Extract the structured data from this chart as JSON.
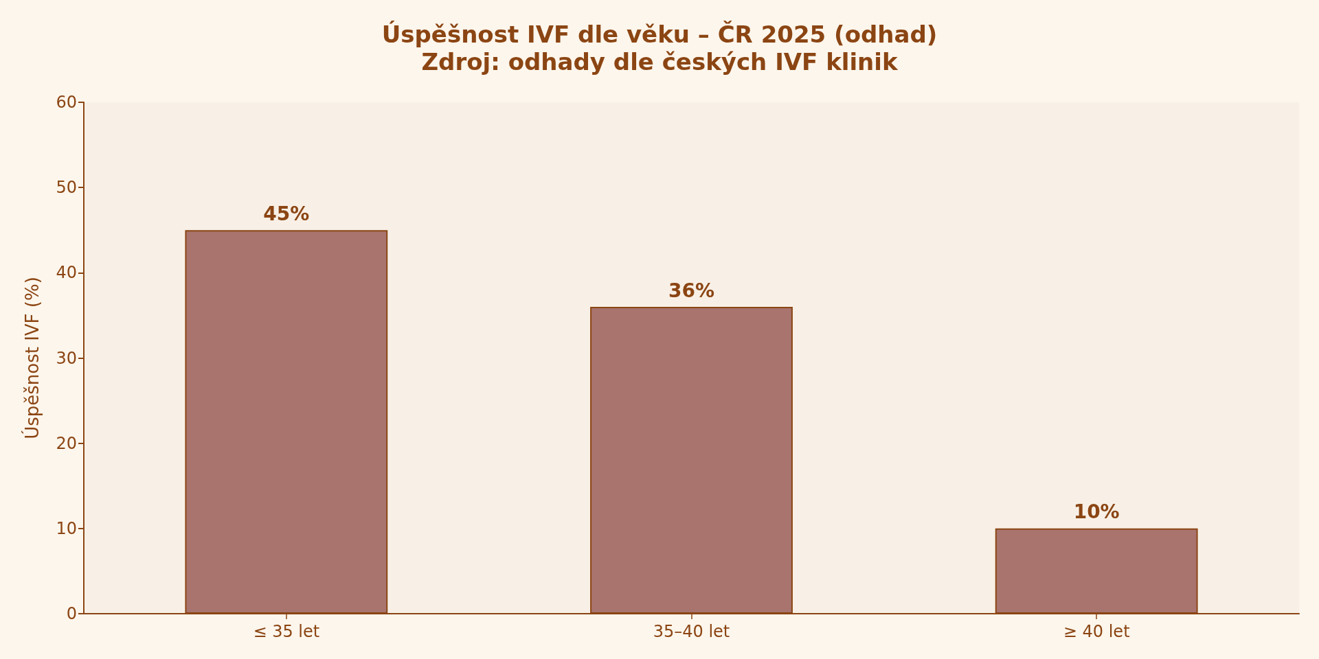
{
  "chart_data": {
    "type": "bar",
    "title": "Úspěšnost IVF dle věku – ČR 2025 (odhad)",
    "subtitle": "Zdroj: odhady dle českých IVF klinik",
    "ylabel": "Úspěšnost IVF (%)",
    "categories": [
      "≤ 35 let",
      "35–40 let",
      "≥ 40 let"
    ],
    "values": [
      45,
      36,
      10
    ],
    "value_labels": [
      "45%",
      "36%",
      "10%"
    ],
    "color": "#a9746e",
    "ylim": [
      0,
      60
    ],
    "yticks": [
      0,
      10,
      20,
      30,
      40,
      50,
      60
    ],
    "grid": false
  }
}
